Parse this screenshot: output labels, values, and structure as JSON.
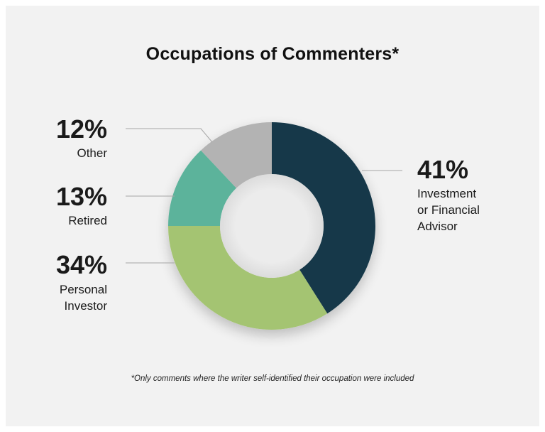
{
  "chart_data": {
    "type": "pie",
    "style": "donut",
    "title": "Occupations of Commenters*",
    "slices": [
      {
        "name": "Investment or Financial Advisor",
        "value": 41,
        "label": "41%",
        "text_lines": [
          "Investment",
          "or Financial",
          "Advisor"
        ],
        "color": "#14394a"
      },
      {
        "name": "Personal Investor",
        "value": 34,
        "label": "34%",
        "text_lines": [
          "Personal",
          "Investor"
        ],
        "color": "#a4c472"
      },
      {
        "name": "Retired",
        "value": 13,
        "label": "13%",
        "text_lines": [
          "Retired"
        ],
        "color": "#5bb39b"
      },
      {
        "name": "Other",
        "value": 12,
        "label": "12%",
        "text_lines": [
          "Other"
        ],
        "color": "#b3b3b3"
      }
    ],
    "legend": "none",
    "footnote": "*Only comments where the writer self-identified their occupation were included"
  }
}
